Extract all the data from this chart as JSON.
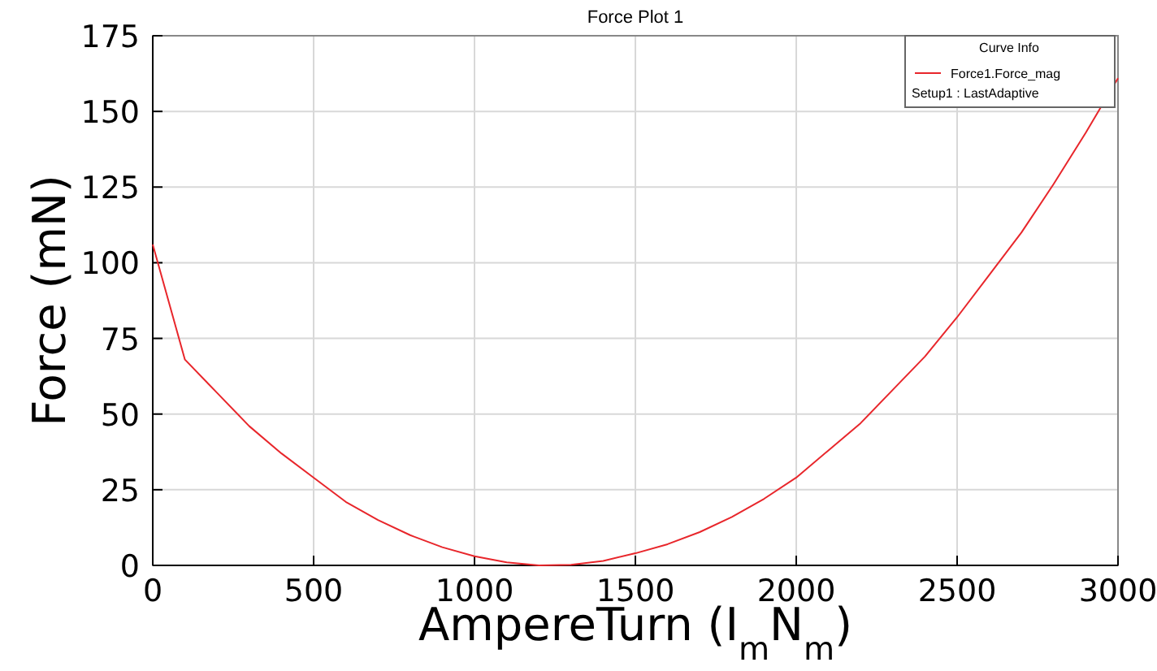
{
  "chart_data": {
    "type": "line",
    "title": "Force Plot 1",
    "xlabel": "AmpereTurn (I$_{m}$N$_{m}$)",
    "ylabel": "Force (mN)",
    "legend_title": "Curve Info",
    "annotations": [
      "Setup1 : LastAdaptive"
    ],
    "x": [
      0,
      100,
      200,
      300,
      400,
      500,
      600,
      700,
      800,
      900,
      1000,
      1100,
      1200,
      1300,
      1400,
      1500,
      1600,
      1700,
      1800,
      1900,
      2000,
      2100,
      2200,
      2300,
      2400,
      2500,
      2600,
      2700,
      2800,
      2900,
      3000
    ],
    "series": [
      {
        "name": "Force1.Force_mag",
        "color": "#e8262b",
        "values": [
          106,
          68,
          57,
          46,
          37,
          29,
          21,
          15,
          10,
          6,
          3,
          1,
          0,
          0.2,
          1.5,
          4,
          7,
          11,
          16,
          22,
          29,
          38,
          47,
          58,
          69,
          82,
          96,
          110,
          126,
          143,
          161
        ]
      }
    ],
    "xlim": [
      0,
      3000
    ],
    "xticks": [
      0,
      500,
      1000,
      1500,
      2000,
      2500,
      3000
    ],
    "ylim": [
      0,
      175
    ],
    "yticks": [
      0,
      25,
      50,
      75,
      100,
      125,
      150,
      175
    ],
    "grid": true,
    "legend": "top right",
    "line_style": "solid"
  }
}
